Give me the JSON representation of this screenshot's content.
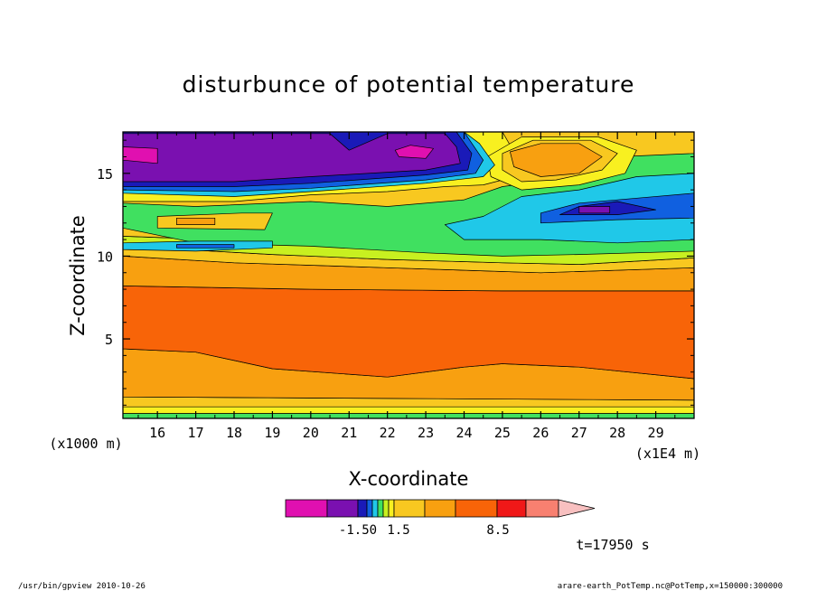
{
  "chart_data": {
    "type": "heatmap",
    "title": "disturbunce of potential temperature",
    "xlabel": "X-coordinate",
    "ylabel": "Z-coordinate",
    "x_unit": "(x1E4 m)",
    "y_unit": "(x1000 m)",
    "x_ticks": [
      16,
      17,
      18,
      19,
      20,
      21,
      22,
      23,
      24,
      25,
      26,
      27,
      28,
      29
    ],
    "y_ticks": [
      5,
      10,
      15
    ],
    "xlim": [
      15.1,
      30.0
    ],
    "ylim": [
      0.2,
      17.5
    ],
    "colorbar": {
      "colors": [
        "#e010b0",
        "#7a10b0",
        "#1a1ab8",
        "#1060e0",
        "#20c8e8",
        "#40e060",
        "#c8f020",
        "#f8f020",
        "#f8c820",
        "#f8a010",
        "#f86408",
        "#f01818",
        "#f88070",
        "#f8c0c0"
      ],
      "labels": [
        "-1.50",
        "1.5",
        "8.5"
      ]
    },
    "time_label": "t=17950 s",
    "bands": [
      {
        "color": "#40e060",
        "poly": [
          [
            15.1,
            0.2
          ],
          [
            30.0,
            0.2
          ],
          [
            30.0,
            0.5
          ],
          [
            15.1,
            0.5
          ]
        ]
      },
      {
        "color": "#f8f020",
        "poly": [
          [
            15.1,
            0.5
          ],
          [
            30.0,
            0.5
          ],
          [
            30.0,
            0.9
          ],
          [
            15.1,
            0.9
          ]
        ]
      },
      {
        "color": "#f8c820",
        "poly": [
          [
            15.1,
            0.9
          ],
          [
            30.0,
            0.9
          ],
          [
            30.0,
            1.3
          ],
          [
            15.1,
            1.5
          ]
        ]
      },
      {
        "color": "#f8a010",
        "poly": [
          [
            15.1,
            1.5
          ],
          [
            30.0,
            1.3
          ],
          [
            30.0,
            2.6
          ],
          [
            27.0,
            3.3
          ],
          [
            25.0,
            3.5
          ],
          [
            24.0,
            3.3
          ],
          [
            22.0,
            2.7
          ],
          [
            19.0,
            3.2
          ],
          [
            17.0,
            4.2
          ],
          [
            15.1,
            4.4
          ]
        ]
      },
      {
        "color": "#f86408",
        "poly": [
          [
            15.1,
            4.4
          ],
          [
            17.0,
            4.2
          ],
          [
            19.0,
            3.2
          ],
          [
            22.0,
            2.7
          ],
          [
            24.0,
            3.3
          ],
          [
            25.0,
            3.5
          ],
          [
            27.0,
            3.3
          ],
          [
            30.0,
            2.6
          ],
          [
            30.0,
            7.9
          ],
          [
            25.0,
            7.9
          ],
          [
            20.0,
            8.0
          ],
          [
            15.1,
            8.2
          ]
        ]
      },
      {
        "color": "#f8a010",
        "poly": [
          [
            15.1,
            8.2
          ],
          [
            20.0,
            8.0
          ],
          [
            25.0,
            7.9
          ],
          [
            30.0,
            7.9
          ],
          [
            30.0,
            9.3
          ],
          [
            26.0,
            9.0
          ],
          [
            22.0,
            9.3
          ],
          [
            18.0,
            9.6
          ],
          [
            15.1,
            10.0
          ]
        ]
      },
      {
        "color": "#f8c820",
        "poly": [
          [
            15.1,
            10.0
          ],
          [
            18.0,
            9.6
          ],
          [
            22.0,
            9.3
          ],
          [
            26.0,
            9.0
          ],
          [
            30.0,
            9.3
          ],
          [
            30.0,
            9.9
          ],
          [
            27.0,
            9.5
          ],
          [
            25.0,
            9.6
          ],
          [
            22.0,
            9.8
          ],
          [
            19.0,
            10.1
          ],
          [
            15.1,
            10.6
          ]
        ]
      },
      {
        "color": "#c8f020",
        "poly": [
          [
            15.1,
            10.6
          ],
          [
            19.0,
            10.1
          ],
          [
            22.0,
            9.8
          ],
          [
            25.0,
            9.6
          ],
          [
            27.0,
            9.5
          ],
          [
            30.0,
            9.9
          ],
          [
            30.0,
            10.6
          ],
          [
            26.0,
            10.3
          ],
          [
            23.0,
            10.5
          ],
          [
            20.0,
            10.8
          ],
          [
            15.1,
            11.2
          ]
        ]
      },
      {
        "color": "#f8c820",
        "poly": [
          [
            15.1,
            11.2
          ],
          [
            20.0,
            10.8
          ],
          [
            23.0,
            10.5
          ],
          [
            26.0,
            10.3
          ],
          [
            30.0,
            10.6
          ],
          [
            30.0,
            17.5
          ],
          [
            15.1,
            17.5
          ]
        ]
      },
      {
        "color": "#40e060",
        "poly": [
          [
            15.1,
            11.7
          ],
          [
            17.0,
            10.8
          ],
          [
            20.0,
            10.6
          ],
          [
            23.0,
            10.2
          ],
          [
            25.0,
            10.0
          ],
          [
            27.0,
            10.1
          ],
          [
            30.0,
            10.3
          ],
          [
            30.0,
            16.2
          ],
          [
            28.0,
            16.0
          ],
          [
            27.0,
            15.2
          ],
          [
            26.0,
            14.5
          ],
          [
            25.0,
            14.2
          ],
          [
            24.0,
            13.4
          ],
          [
            22.0,
            13.0
          ],
          [
            20.0,
            13.3
          ],
          [
            17.0,
            13.0
          ],
          [
            15.1,
            13.2
          ]
        ]
      },
      {
        "color": "#20c8e8",
        "poly": [
          [
            24.0,
            11.0
          ],
          [
            26.0,
            11.0
          ],
          [
            28.0,
            10.8
          ],
          [
            30.0,
            11.0
          ],
          [
            30.0,
            15.0
          ],
          [
            28.5,
            14.8
          ],
          [
            27.0,
            14.0
          ],
          [
            25.5,
            13.6
          ],
          [
            24.5,
            12.4
          ],
          [
            23.5,
            11.9
          ]
        ]
      },
      {
        "color": "#1060e0",
        "poly": [
          [
            26.0,
            12.0
          ],
          [
            28.0,
            12.2
          ],
          [
            30.0,
            12.3
          ],
          [
            30.0,
            13.8
          ],
          [
            28.5,
            13.5
          ],
          [
            27.0,
            13.2
          ],
          [
            26.0,
            12.6
          ]
        ]
      },
      {
        "color": "#1a1ab8",
        "poly": [
          [
            26.5,
            12.5
          ],
          [
            28.0,
            12.5
          ],
          [
            29.0,
            12.8
          ],
          [
            28.0,
            13.3
          ],
          [
            27.0,
            13.0
          ]
        ]
      },
      {
        "color": "#7a10b0",
        "poly": [
          [
            27.0,
            12.6
          ],
          [
            27.8,
            12.6
          ],
          [
            27.8,
            13.0
          ],
          [
            27.0,
            13.0
          ]
        ]
      },
      {
        "color": "#20c8e8",
        "poly": [
          [
            15.1,
            10.4
          ],
          [
            17.0,
            10.3
          ],
          [
            19.0,
            10.5
          ],
          [
            19.0,
            10.9
          ],
          [
            17.0,
            10.9
          ],
          [
            15.1,
            10.8
          ]
        ]
      },
      {
        "color": "#1060e0",
        "poly": [
          [
            16.5,
            10.5
          ],
          [
            18.0,
            10.5
          ],
          [
            18.0,
            10.7
          ],
          [
            16.5,
            10.7
          ]
        ]
      },
      {
        "color": "#f8f020",
        "poly": [
          [
            15.1,
            13.3
          ],
          [
            18.0,
            13.3
          ],
          [
            20.0,
            13.7
          ],
          [
            22.0,
            13.9
          ],
          [
            23.5,
            14.2
          ],
          [
            24.5,
            14.3
          ],
          [
            25.0,
            14.6
          ],
          [
            25.5,
            15.5
          ],
          [
            25.0,
            17.5
          ],
          [
            15.1,
            17.5
          ]
        ]
      },
      {
        "color": "#f8f020",
        "poly": [
          [
            24.6,
            16.0
          ],
          [
            25.5,
            17.2
          ],
          [
            27.5,
            17.2
          ],
          [
            28.5,
            16.4
          ],
          [
            28.2,
            15.0
          ],
          [
            27.0,
            14.3
          ],
          [
            25.5,
            14.0
          ],
          [
            24.7,
            14.8
          ]
        ]
      },
      {
        "color": "#f8c820",
        "poly": [
          [
            25.0,
            16.2
          ],
          [
            25.8,
            17.0
          ],
          [
            27.3,
            17.0
          ],
          [
            28.0,
            16.2
          ],
          [
            27.6,
            15.2
          ],
          [
            26.4,
            14.6
          ],
          [
            25.5,
            14.5
          ],
          [
            25.0,
            15.2
          ]
        ]
      },
      {
        "color": "#f8a010",
        "poly": [
          [
            25.2,
            16.3
          ],
          [
            26.0,
            16.8
          ],
          [
            27.0,
            16.8
          ],
          [
            27.6,
            16.0
          ],
          [
            27.0,
            15.0
          ],
          [
            26.0,
            14.8
          ],
          [
            25.3,
            15.4
          ]
        ]
      },
      {
        "color": "#20c8e8",
        "poly": [
          [
            15.1,
            13.8
          ],
          [
            18.0,
            13.6
          ],
          [
            20.0,
            13.9
          ],
          [
            23.0,
            14.4
          ],
          [
            24.5,
            14.8
          ],
          [
            24.8,
            15.5
          ],
          [
            24.4,
            16.8
          ],
          [
            24.0,
            17.5
          ],
          [
            15.1,
            17.5
          ]
        ]
      },
      {
        "color": "#1060e0",
        "poly": [
          [
            15.1,
            14.0
          ],
          [
            18.0,
            13.9
          ],
          [
            20.0,
            14.1
          ],
          [
            23.0,
            14.6
          ],
          [
            24.3,
            15.0
          ],
          [
            24.5,
            15.8
          ],
          [
            24.0,
            17.5
          ],
          [
            15.1,
            17.5
          ]
        ]
      },
      {
        "color": "#1a1ab8",
        "poly": [
          [
            15.1,
            14.2
          ],
          [
            18.0,
            14.2
          ],
          [
            20.0,
            14.4
          ],
          [
            23.0,
            14.9
          ],
          [
            24.1,
            15.2
          ],
          [
            24.2,
            16.2
          ],
          [
            23.8,
            17.5
          ],
          [
            15.1,
            17.5
          ]
        ]
      },
      {
        "color": "#7a10b0",
        "poly": [
          [
            15.1,
            14.5
          ],
          [
            18.0,
            14.5
          ],
          [
            20.0,
            14.8
          ],
          [
            23.0,
            15.2
          ],
          [
            23.9,
            15.6
          ],
          [
            23.8,
            16.6
          ],
          [
            23.5,
            17.4
          ],
          [
            22.0,
            17.4
          ],
          [
            21.0,
            16.4
          ],
          [
            20.5,
            17.4
          ],
          [
            15.1,
            17.4
          ]
        ]
      },
      {
        "color": "#e010b0",
        "poly": [
          [
            15.1,
            15.8
          ],
          [
            16.0,
            15.6
          ],
          [
            16.0,
            16.5
          ],
          [
            15.1,
            16.6
          ]
        ]
      },
      {
        "color": "#e010b0",
        "poly": [
          [
            22.3,
            16.0
          ],
          [
            23.0,
            15.9
          ],
          [
            23.2,
            16.5
          ],
          [
            22.6,
            16.7
          ],
          [
            22.2,
            16.4
          ]
        ]
      },
      {
        "color": "#f8c820",
        "poly": [
          [
            16.0,
            11.7
          ],
          [
            18.8,
            11.6
          ],
          [
            19.0,
            12.6
          ],
          [
            18.2,
            12.6
          ],
          [
            16.0,
            12.4
          ]
        ]
      },
      {
        "color": "#f8a010",
        "poly": [
          [
            16.5,
            11.9
          ],
          [
            17.5,
            11.9
          ],
          [
            17.5,
            12.3
          ],
          [
            16.5,
            12.3
          ]
        ]
      }
    ]
  },
  "footer": {
    "left": "/usr/bin/gpview   2010-10-26",
    "right": "arare-earth_PotTemp.nc@PotTemp,x=150000:300000"
  }
}
